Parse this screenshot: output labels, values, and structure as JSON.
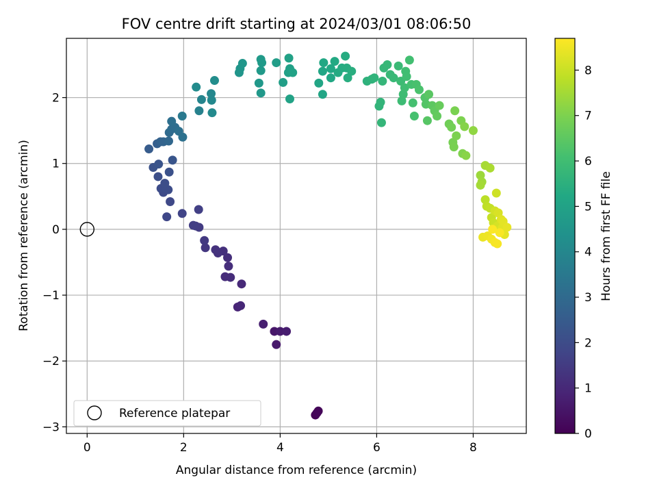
{
  "chart_data": {
    "type": "scatter",
    "title": "FOV centre drift starting at 2024/03/01 08:06:50",
    "xlabel": "Angular distance from reference (arcmin)",
    "ylabel": "Rotation from reference (arcmin)",
    "xlim": [
      -0.43,
      9.1
    ],
    "ylim": [
      -3.1,
      2.9
    ],
    "xticks": [
      0,
      2,
      4,
      6,
      8
    ],
    "yticks": [
      -3,
      -2,
      -1,
      0,
      1,
      2
    ],
    "grid": true,
    "legend": {
      "placement": "lower-left",
      "entries": [
        "Reference platepar"
      ]
    },
    "reference_point": {
      "x": 0,
      "y": 0
    },
    "colorbar": {
      "label": "Hours from first FF file",
      "range": [
        0,
        8.7
      ],
      "ticks": [
        0,
        1,
        2,
        3,
        4,
        5,
        6,
        7,
        8
      ],
      "colormap": "viridis"
    },
    "points": [
      {
        "x": 4.73,
        "y": -2.82,
        "t": 0.05
      },
      {
        "x": 4.79,
        "y": -2.76,
        "t": 0.1
      },
      {
        "x": 4.76,
        "y": -2.79,
        "t": 0.12
      },
      {
        "x": 3.88,
        "y": -1.55,
        "t": 0.55
      },
      {
        "x": 3.92,
        "y": -1.75,
        "t": 0.6
      },
      {
        "x": 4.0,
        "y": -1.55,
        "t": 0.65
      },
      {
        "x": 4.13,
        "y": -1.55,
        "t": 0.7
      },
      {
        "x": 3.65,
        "y": -1.44,
        "t": 0.75
      },
      {
        "x": 3.12,
        "y": -1.18,
        "t": 0.9
      },
      {
        "x": 3.18,
        "y": -1.16,
        "t": 0.95
      },
      {
        "x": 3.2,
        "y": -0.83,
        "t": 1.0
      },
      {
        "x": 2.86,
        "y": -0.72,
        "t": 1.1
      },
      {
        "x": 2.97,
        "y": -0.73,
        "t": 1.12
      },
      {
        "x": 2.93,
        "y": -0.56,
        "t": 1.15
      },
      {
        "x": 2.91,
        "y": -0.43,
        "t": 1.18
      },
      {
        "x": 2.82,
        "y": -0.33,
        "t": 1.2
      },
      {
        "x": 2.71,
        "y": -0.36,
        "t": 1.25
      },
      {
        "x": 2.66,
        "y": -0.31,
        "t": 1.28
      },
      {
        "x": 2.45,
        "y": -0.28,
        "t": 1.4
      },
      {
        "x": 2.43,
        "y": -0.17,
        "t": 1.45
      },
      {
        "x": 2.32,
        "y": 0.03,
        "t": 1.5
      },
      {
        "x": 2.25,
        "y": 0.05,
        "t": 1.55
      },
      {
        "x": 2.2,
        "y": 0.06,
        "t": 1.58
      },
      {
        "x": 2.31,
        "y": 0.3,
        "t": 1.62
      },
      {
        "x": 1.97,
        "y": 0.24,
        "t": 1.75
      },
      {
        "x": 1.65,
        "y": 0.19,
        "t": 1.85
      },
      {
        "x": 1.72,
        "y": 0.42,
        "t": 1.9
      },
      {
        "x": 1.58,
        "y": 0.56,
        "t": 1.95
      },
      {
        "x": 1.53,
        "y": 0.62,
        "t": 2.0
      },
      {
        "x": 1.62,
        "y": 0.63,
        "t": 2.02
      },
      {
        "x": 1.68,
        "y": 0.6,
        "t": 2.04
      },
      {
        "x": 1.61,
        "y": 0.7,
        "t": 2.06
      },
      {
        "x": 1.47,
        "y": 0.8,
        "t": 2.1
      },
      {
        "x": 1.7,
        "y": 0.87,
        "t": 2.15
      },
      {
        "x": 1.37,
        "y": 0.94,
        "t": 2.2
      },
      {
        "x": 1.48,
        "y": 0.99,
        "t": 2.25
      },
      {
        "x": 1.77,
        "y": 1.05,
        "t": 2.3
      },
      {
        "x": 1.28,
        "y": 1.22,
        "t": 2.5
      },
      {
        "x": 1.45,
        "y": 1.3,
        "t": 2.6
      },
      {
        "x": 1.52,
        "y": 1.33,
        "t": 2.7
      },
      {
        "x": 1.58,
        "y": 1.33,
        "t": 2.8
      },
      {
        "x": 1.69,
        "y": 1.34,
        "t": 2.9
      },
      {
        "x": 1.7,
        "y": 1.47,
        "t": 3.0
      },
      {
        "x": 1.75,
        "y": 1.52,
        "t": 3.05
      },
      {
        "x": 1.82,
        "y": 1.55,
        "t": 3.1
      },
      {
        "x": 1.75,
        "y": 1.64,
        "t": 3.15
      },
      {
        "x": 1.9,
        "y": 1.49,
        "t": 3.2
      },
      {
        "x": 1.98,
        "y": 1.4,
        "t": 3.25
      },
      {
        "x": 1.97,
        "y": 1.72,
        "t": 3.5
      },
      {
        "x": 2.32,
        "y": 1.8,
        "t": 3.8
      },
      {
        "x": 2.37,
        "y": 1.97,
        "t": 3.9
      },
      {
        "x": 2.57,
        "y": 2.06,
        "t": 4.0
      },
      {
        "x": 2.58,
        "y": 1.96,
        "t": 4.05
      },
      {
        "x": 2.59,
        "y": 1.77,
        "t": 4.1
      },
      {
        "x": 2.26,
        "y": 2.16,
        "t": 4.15
      },
      {
        "x": 2.64,
        "y": 2.26,
        "t": 4.2
      },
      {
        "x": 3.15,
        "y": 2.38,
        "t": 4.5
      },
      {
        "x": 3.17,
        "y": 2.44,
        "t": 4.52
      },
      {
        "x": 3.22,
        "y": 2.52,
        "t": 4.55
      },
      {
        "x": 3.6,
        "y": 2.07,
        "t": 4.6
      },
      {
        "x": 3.56,
        "y": 2.22,
        "t": 4.62
      },
      {
        "x": 3.6,
        "y": 2.41,
        "t": 4.65
      },
      {
        "x": 3.62,
        "y": 2.53,
        "t": 4.68
      },
      {
        "x": 3.6,
        "y": 2.58,
        "t": 4.7
      },
      {
        "x": 3.92,
        "y": 2.53,
        "t": 4.8
      },
      {
        "x": 4.06,
        "y": 2.23,
        "t": 4.85
      },
      {
        "x": 4.17,
        "y": 2.38,
        "t": 4.9
      },
      {
        "x": 4.2,
        "y": 2.44,
        "t": 4.92
      },
      {
        "x": 4.18,
        "y": 2.6,
        "t": 4.95
      },
      {
        "x": 4.26,
        "y": 2.38,
        "t": 4.98
      },
      {
        "x": 4.2,
        "y": 1.98,
        "t": 5.0
      },
      {
        "x": 4.8,
        "y": 2.22,
        "t": 5.1
      },
      {
        "x": 4.88,
        "y": 2.05,
        "t": 5.12
      },
      {
        "x": 4.88,
        "y": 2.4,
        "t": 5.15
      },
      {
        "x": 4.9,
        "y": 2.53,
        "t": 5.18
      },
      {
        "x": 5.05,
        "y": 2.3,
        "t": 5.2
      },
      {
        "x": 5.05,
        "y": 2.44,
        "t": 5.22
      },
      {
        "x": 5.13,
        "y": 2.55,
        "t": 5.25
      },
      {
        "x": 5.2,
        "y": 2.38,
        "t": 5.3
      },
      {
        "x": 5.28,
        "y": 2.45,
        "t": 5.32
      },
      {
        "x": 5.35,
        "y": 2.63,
        "t": 5.35
      },
      {
        "x": 5.38,
        "y": 2.45,
        "t": 5.38
      },
      {
        "x": 5.4,
        "y": 2.3,
        "t": 5.4
      },
      {
        "x": 5.48,
        "y": 2.4,
        "t": 5.42
      },
      {
        "x": 5.8,
        "y": 2.25,
        "t": 5.55
      },
      {
        "x": 5.9,
        "y": 2.28,
        "t": 5.6
      },
      {
        "x": 5.95,
        "y": 2.3,
        "t": 5.62
      },
      {
        "x": 6.05,
        "y": 1.87,
        "t": 5.65
      },
      {
        "x": 6.08,
        "y": 1.93,
        "t": 5.67
      },
      {
        "x": 6.1,
        "y": 1.62,
        "t": 5.7
      },
      {
        "x": 6.12,
        "y": 2.25,
        "t": 5.72
      },
      {
        "x": 6.15,
        "y": 2.45,
        "t": 5.75
      },
      {
        "x": 6.22,
        "y": 2.5,
        "t": 5.78
      },
      {
        "x": 6.28,
        "y": 2.35,
        "t": 5.8
      },
      {
        "x": 6.35,
        "y": 2.3,
        "t": 5.82
      },
      {
        "x": 6.45,
        "y": 2.48,
        "t": 5.85
      },
      {
        "x": 6.5,
        "y": 2.25,
        "t": 5.9
      },
      {
        "x": 6.52,
        "y": 1.95,
        "t": 5.92
      },
      {
        "x": 6.55,
        "y": 2.05,
        "t": 5.95
      },
      {
        "x": 6.58,
        "y": 2.15,
        "t": 5.98
      },
      {
        "x": 6.6,
        "y": 2.4,
        "t": 6.0
      },
      {
        "x": 6.62,
        "y": 2.32,
        "t": 6.02
      },
      {
        "x": 6.68,
        "y": 2.57,
        "t": 6.05
      },
      {
        "x": 6.72,
        "y": 2.2,
        "t": 6.08
      },
      {
        "x": 6.75,
        "y": 1.92,
        "t": 6.1
      },
      {
        "x": 6.78,
        "y": 1.72,
        "t": 6.12
      },
      {
        "x": 6.82,
        "y": 2.2,
        "t": 6.15
      },
      {
        "x": 6.88,
        "y": 2.12,
        "t": 6.18
      },
      {
        "x": 7.0,
        "y": 2.0,
        "t": 6.3
      },
      {
        "x": 7.02,
        "y": 1.9,
        "t": 6.35
      },
      {
        "x": 7.05,
        "y": 1.65,
        "t": 6.4
      },
      {
        "x": 7.08,
        "y": 2.05,
        "t": 6.45
      },
      {
        "x": 7.15,
        "y": 1.88,
        "t": 6.5
      },
      {
        "x": 7.2,
        "y": 1.8,
        "t": 6.55
      },
      {
        "x": 7.25,
        "y": 1.72,
        "t": 6.6
      },
      {
        "x": 7.3,
        "y": 1.88,
        "t": 6.65
      },
      {
        "x": 7.5,
        "y": 1.6,
        "t": 6.8
      },
      {
        "x": 7.55,
        "y": 1.55,
        "t": 6.85
      },
      {
        "x": 7.58,
        "y": 1.32,
        "t": 6.9
      },
      {
        "x": 7.6,
        "y": 1.25,
        "t": 6.92
      },
      {
        "x": 7.62,
        "y": 1.8,
        "t": 6.95
      },
      {
        "x": 7.65,
        "y": 1.42,
        "t": 6.98
      },
      {
        "x": 7.75,
        "y": 1.65,
        "t": 7.0
      },
      {
        "x": 7.78,
        "y": 1.15,
        "t": 7.05
      },
      {
        "x": 7.82,
        "y": 1.56,
        "t": 7.1
      },
      {
        "x": 7.85,
        "y": 1.12,
        "t": 7.15
      },
      {
        "x": 8.0,
        "y": 1.5,
        "t": 7.25
      },
      {
        "x": 8.15,
        "y": 0.82,
        "t": 7.4
      },
      {
        "x": 8.18,
        "y": 0.72,
        "t": 7.45
      },
      {
        "x": 8.15,
        "y": 0.67,
        "t": 7.5
      },
      {
        "x": 8.25,
        "y": 0.97,
        "t": 7.55
      },
      {
        "x": 8.35,
        "y": 0.93,
        "t": 7.6
      },
      {
        "x": 8.25,
        "y": 0.45,
        "t": 7.8
      },
      {
        "x": 8.28,
        "y": 0.35,
        "t": 7.85
      },
      {
        "x": 8.35,
        "y": 0.32,
        "t": 7.9
      },
      {
        "x": 8.38,
        "y": 0.18,
        "t": 7.95
      },
      {
        "x": 8.42,
        "y": 0.1,
        "t": 8.0
      },
      {
        "x": 8.48,
        "y": 0.55,
        "t": 8.05
      },
      {
        "x": 8.45,
        "y": 0.28,
        "t": 8.1
      },
      {
        "x": 8.5,
        "y": 0.05,
        "t": 8.15
      },
      {
        "x": 8.52,
        "y": 0.25,
        "t": 8.2
      },
      {
        "x": 8.55,
        "y": -0.05,
        "t": 8.25
      },
      {
        "x": 8.58,
        "y": 0.15,
        "t": 8.3
      },
      {
        "x": 8.6,
        "y": 0.02,
        "t": 8.32
      },
      {
        "x": 8.62,
        "y": 0.12,
        "t": 8.35
      },
      {
        "x": 8.65,
        "y": -0.08,
        "t": 8.38
      },
      {
        "x": 8.7,
        "y": 0.03,
        "t": 8.4
      },
      {
        "x": 8.2,
        "y": -0.12,
        "t": 8.45
      },
      {
        "x": 8.3,
        "y": -0.1,
        "t": 8.5
      },
      {
        "x": 8.38,
        "y": -0.15,
        "t": 8.55
      },
      {
        "x": 8.45,
        "y": -0.2,
        "t": 8.6
      },
      {
        "x": 8.5,
        "y": -0.22,
        "t": 8.62
      },
      {
        "x": 8.55,
        "y": -0.05,
        "t": 8.65
      },
      {
        "x": 8.4,
        "y": 0.0,
        "t": 8.67
      }
    ]
  }
}
